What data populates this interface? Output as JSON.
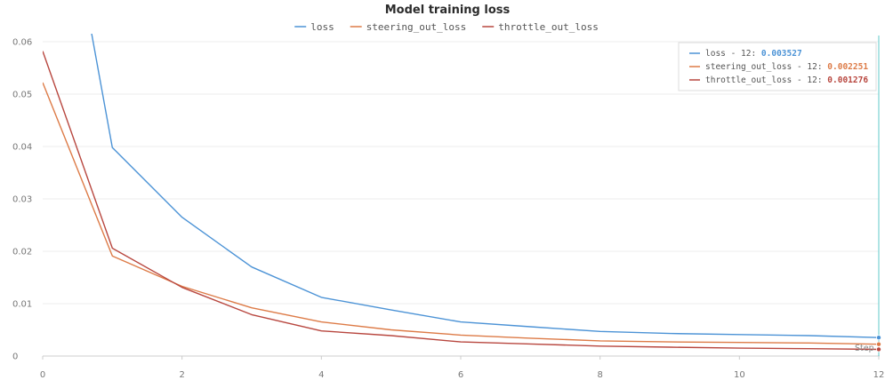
{
  "chart_data": {
    "type": "line",
    "title": "Model training loss",
    "xlabel": "Step",
    "ylabel": "",
    "xlim": [
      0,
      12
    ],
    "ylim": [
      0,
      0.06
    ],
    "x_ticks": [
      0,
      2,
      4,
      6,
      8,
      10,
      12
    ],
    "y_ticks": [
      0,
      0.01,
      0.02,
      0.03,
      0.04,
      0.05,
      0.06
    ],
    "y_tick_labels": [
      "0",
      "0.01",
      "0.02",
      "0.03",
      "0.04",
      "0.05",
      "0.06"
    ],
    "grid": true,
    "legend_position": "top-center",
    "x": [
      0,
      1,
      2,
      3,
      4,
      5,
      6,
      7,
      8,
      9,
      10,
      11,
      12
    ],
    "series": [
      {
        "name": "loss",
        "color": "#4c93d6",
        "values": [
          0.113,
          0.0398,
          0.0265,
          0.017,
          0.0112,
          0.0088,
          0.0065,
          0.0056,
          0.0047,
          0.0043,
          0.0041,
          0.0039,
          0.003527
        ]
      },
      {
        "name": "steering_out_loss",
        "color": "#dd7b47",
        "values": [
          0.0522,
          0.0191,
          0.0133,
          0.0092,
          0.0065,
          0.005,
          0.004,
          0.0034,
          0.0029,
          0.0027,
          0.0026,
          0.0025,
          0.002251
        ]
      },
      {
        "name": "throttle_out_loss",
        "color": "#b8473f",
        "values": [
          0.0582,
          0.0206,
          0.0131,
          0.0079,
          0.0048,
          0.0039,
          0.0027,
          0.0023,
          0.0019,
          0.0017,
          0.0015,
          0.0014,
          0.001276
        ]
      }
    ],
    "tooltip": {
      "step": 12,
      "entries": [
        {
          "label": "loss - 12: ",
          "value": "0.003527",
          "color": "#4c93d6"
        },
        {
          "label": "steering_out_loss - 12: ",
          "value": "0.002251",
          "color": "#dd7b47"
        },
        {
          "label": "throttle_out_loss - 12: ",
          "value": "0.001276",
          "color": "#b8473f"
        }
      ]
    },
    "hover_line_color": "#5fc9c9",
    "grid_color": "#eeeeee"
  }
}
